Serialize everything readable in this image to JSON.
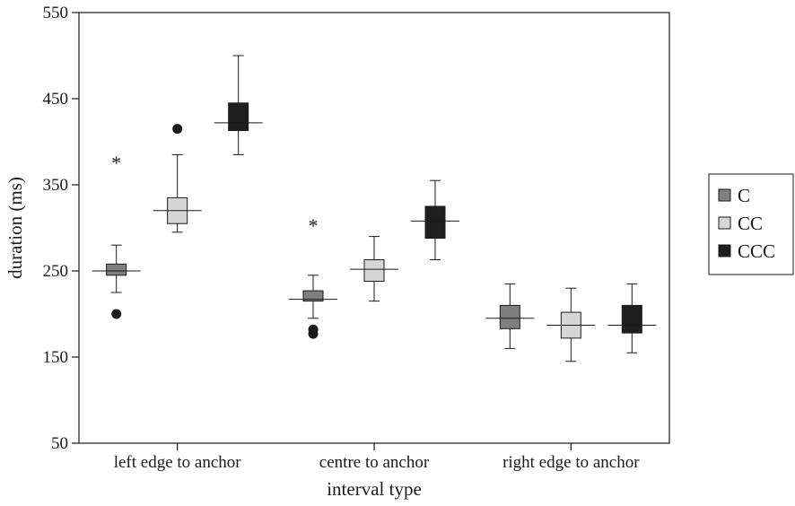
{
  "chart_data": {
    "type": "box",
    "xlabel": "interval type",
    "ylabel": "duration (ms)",
    "ylim": [
      50,
      550
    ],
    "yticks": [
      50,
      150,
      250,
      350,
      450,
      550
    ],
    "categories": [
      "left edge to anchor",
      "centre to anchor",
      "right edge to anchor"
    ],
    "legend_position": "right",
    "series": [
      {
        "name": "C",
        "color": "#7f7f7f",
        "boxes": [
          {
            "min": 225,
            "q1": 245,
            "median": 250,
            "q3": 258,
            "max": 280,
            "outliers": [
              200
            ],
            "extremes": [
              378
            ]
          },
          {
            "min": 195,
            "q1": 215,
            "median": 217,
            "q3": 227,
            "max": 245,
            "outliers": [
              182,
              177
            ],
            "extremes": [
              305
            ]
          },
          {
            "min": 160,
            "q1": 183,
            "median": 195,
            "q3": 210,
            "max": 235,
            "outliers": [],
            "extremes": []
          }
        ]
      },
      {
        "name": "CC",
        "color": "#d6d6d6",
        "boxes": [
          {
            "min": 295,
            "q1": 305,
            "median": 320,
            "q3": 335,
            "max": 385,
            "outliers": [
              415
            ],
            "extremes": []
          },
          {
            "min": 215,
            "q1": 238,
            "median": 252,
            "q3": 263,
            "max": 290,
            "outliers": [],
            "extremes": []
          },
          {
            "min": 145,
            "q1": 172,
            "median": 187,
            "q3": 202,
            "max": 230,
            "outliers": [],
            "extremes": []
          }
        ]
      },
      {
        "name": "CCC",
        "color": "#1e1e1e",
        "boxes": [
          {
            "min": 385,
            "q1": 413,
            "median": 422,
            "q3": 445,
            "max": 500,
            "outliers": [],
            "extremes": []
          },
          {
            "min": 263,
            "q1": 288,
            "median": 308,
            "q3": 325,
            "max": 355,
            "outliers": [],
            "extremes": []
          },
          {
            "min": 155,
            "q1": 178,
            "median": 187,
            "q3": 210,
            "max": 235,
            "outliers": [],
            "extremes": []
          }
        ]
      }
    ]
  }
}
